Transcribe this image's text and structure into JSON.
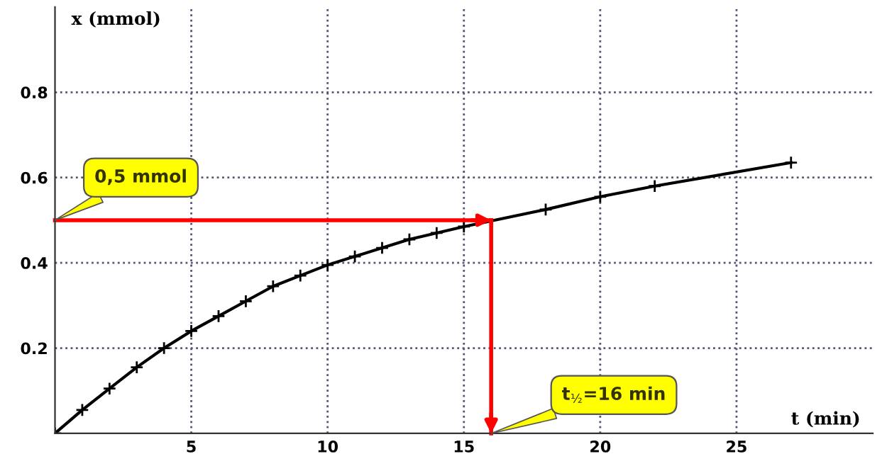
{
  "chart_data": {
    "type": "line",
    "xlabel": "t (min)",
    "ylabel": "x (mmol)",
    "x": [
      0,
      1,
      2,
      3,
      4,
      5,
      6,
      7,
      8,
      9,
      10,
      11,
      12,
      13,
      14,
      15,
      18,
      20,
      22,
      27
    ],
    "series": [
      {
        "color": "#000000",
        "values": [
          0,
          0.055,
          0.105,
          0.155,
          0.2,
          0.24,
          0.275,
          0.31,
          0.345,
          0.37,
          0.395,
          0.415,
          0.435,
          0.455,
          0.47,
          0.485,
          0.525,
          0.555,
          0.58,
          0.635
        ]
      }
    ],
    "marker": "cross",
    "line_style": "solid",
    "xlim": [
      0,
      30
    ],
    "ylim": [
      0,
      1.0
    ],
    "xticks": [
      5,
      10,
      15,
      20,
      25
    ],
    "yticks": [
      0.2,
      0.4,
      0.6,
      0.8
    ],
    "grid": true,
    "legend": false,
    "ref_lines": [
      {
        "axis": "y",
        "value": 0.5,
        "label": "0,5 mmol",
        "color": "#ff0000"
      },
      {
        "axis": "x",
        "value": 16,
        "label": "t$_{½}$=16 min",
        "color": "#ff0000"
      }
    ]
  }
}
